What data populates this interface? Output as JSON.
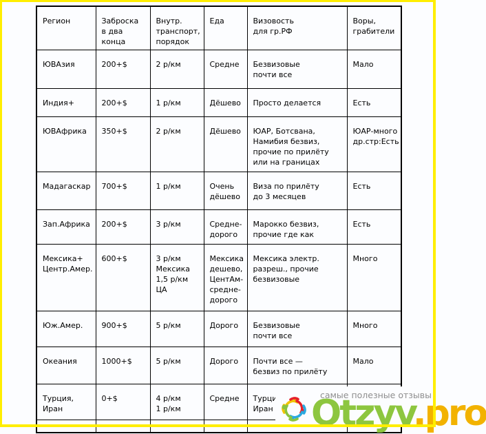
{
  "table": {
    "headers": [
      "Регион",
      "Заброска\nв два\nконца",
      "Внутр.\nтранспорт,\nпорядок",
      "Еда",
      "Визовость\nдля гр.РФ",
      "Воры,\nграбители"
    ],
    "rows": [
      [
        "ЮВАзия",
        "200+$",
        "2 р/км",
        "Средне",
        "Безвизовые\nпочти все",
        "Мало"
      ],
      [
        "Индия+",
        "200+$",
        "1 р/км",
        "Дёшево",
        "Просто делается",
        "Есть"
      ],
      [
        "ЮВАфрика",
        "350+$",
        "2 р/км",
        "Дёшево",
        "ЮАР, Ботсвана,\nНамибия безвиз,\nпрочие по прилёту\nили на границах",
        "ЮАР-много\nдр.стр:Есть"
      ],
      [
        "Мадагаскар",
        "700+$",
        "1 р/км",
        "Очень\nдёшево",
        "Виза по прилёту\nдо 3 месяцев",
        "Есть"
      ],
      [
        "Зап.Африка",
        "200+$",
        "3 р/км",
        "Средне-\nдорого",
        "Марокко безвиз,\nпрочие где как",
        "Есть"
      ],
      [
        "Мексика+\nЦентр.Амер.",
        "600+$",
        "3 р/км\nМексика\n1,5 р/км\nЦА",
        "Мексика\nдешево,\nЦентАм-\nсредне-\nдорого",
        "Мексика электр.\nразреш., прочие\nбезвизовые",
        "Много"
      ],
      [
        "Юж.Амер.",
        "900+$",
        "5 р/км",
        "Дорого",
        "Безвизовые\nпочти все",
        "Много"
      ],
      [
        "Океания",
        "1000+$",
        "5 р/км",
        "Дорого",
        "Почти все —\nбезвиз по прилёту",
        "Мало"
      ],
      [
        "Турция,\nИран",
        "0+$",
        "4 р/км\n1 р/км",
        "Средне",
        "Турция\nИран н",
        ""
      ],
      [
        "",
        "",
        "",
        "",
        "",
        ""
      ]
    ]
  },
  "logo": {
    "tagline": "самые полезные отзывы",
    "name_green": "Otzyv",
    "name_orange": ".pro",
    "colors": {
      "green": "#8dc63f",
      "orange": "#f2b200",
      "icon_yellow": "#f2c500",
      "icon_red": "#e62129",
      "icon_blue": "#2aa9e0",
      "icon_green": "#8ac43f",
      "frame_yellow": "#ffee00"
    }
  }
}
